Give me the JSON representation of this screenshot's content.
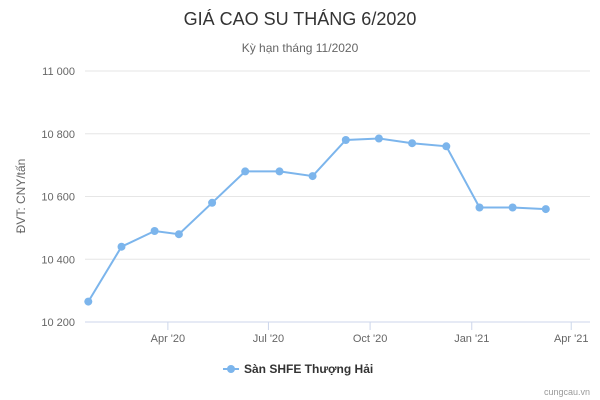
{
  "chart_data": {
    "type": "line",
    "title": "GIÁ CAO SU THÁNG 6/2020",
    "subtitle": "Kỳ hạn tháng 11/2020",
    "ylabel": "ĐVT: CNY/tấn",
    "xlabel": "",
    "ylim": [
      10200,
      11000
    ],
    "yticks": [
      10200,
      10400,
      10600,
      10800,
      11000
    ],
    "ytick_labels": [
      "10 200",
      "10 400",
      "10 600",
      "10 800",
      "11 000"
    ],
    "xlim": [
      "2020-01-17",
      "2021-04-18"
    ],
    "xticks": [
      "2020-04-01",
      "2020-07-01",
      "2020-10-01",
      "2021-01-01",
      "2021-04-01"
    ],
    "xtick_labels": [
      "Apr '20",
      "Jul '20",
      "Oct '20",
      "Jan '21",
      "Apr '21"
    ],
    "grid": true,
    "legend_position": "bottom-center",
    "color": "#7cb5ec",
    "series": [
      {
        "name": "Sàn SHFE Thượng Hải",
        "x": [
          "2020-01-20",
          "2020-02-19",
          "2020-03-20",
          "2020-04-11",
          "2020-05-11",
          "2020-06-10",
          "2020-07-11",
          "2020-08-10",
          "2020-09-09",
          "2020-10-09",
          "2020-11-08",
          "2020-12-09",
          "2021-01-08",
          "2021-02-07",
          "2021-03-09"
        ],
        "y": [
          10265,
          10440,
          10490,
          10480,
          10580,
          10680,
          10680,
          10665,
          10780,
          10785,
          10770,
          10760,
          10565,
          10565,
          10560
        ]
      }
    ]
  },
  "credit": "cungcau.vn"
}
